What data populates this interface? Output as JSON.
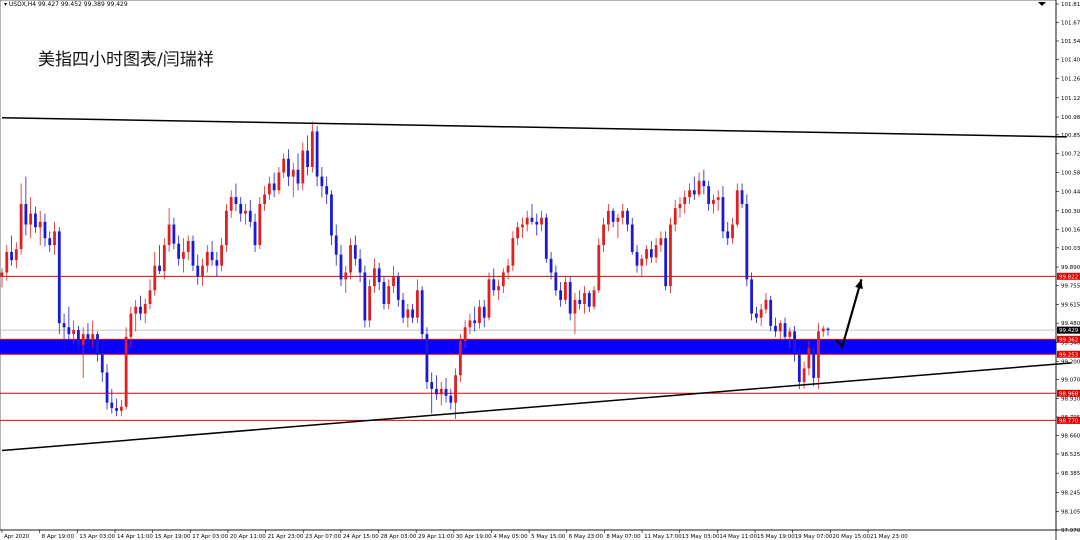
{
  "header": {
    "symbol_info": "▾ USDX,H4  99.427 99.452 99.389 99.429",
    "title": "美指四小时图表/闫瑞祥"
  },
  "colors": {
    "bull": "#e02020",
    "bear": "#1a1ad6",
    "zone": "#0a00ff",
    "level": "#e00000",
    "trend": "#000000"
  },
  "chart_data": {
    "type": "candlestick",
    "title": "美指四小时图表/闫瑞祥",
    "ylim": [
      97.97,
      101.81
    ],
    "y_ticks": [
      101.81,
      101.675,
      101.54,
      101.405,
      101.265,
      101.125,
      100.985,
      100.855,
      100.72,
      100.58,
      100.44,
      100.3,
      100.165,
      100.03,
      99.89,
      99.755,
      99.615,
      99.48,
      99.34,
      99.2,
      99.07,
      98.93,
      98.795,
      98.66,
      98.525,
      98.385,
      98.245,
      98.105,
      97.97
    ],
    "x_labels": [
      "Apr 2020",
      "8 Apr 19:00",
      "13 Apr 03:00",
      "14 Apr 11:00",
      "15 Apr 19:00",
      "17 Apr 03:00",
      "20 Apr 11:00",
      "21 Apr 23:00",
      "23 Apr 07:00",
      "24 Apr 15:00",
      "28 Apr 03:00",
      "29 Apr 11:00",
      "30 Apr 19:00",
      "4 May 05:00",
      "5 May 15:00",
      "6 May 23:00",
      "8 May 07:00",
      "11 May 17:00",
      "13 May 03:00",
      "14 May 11:00",
      "15 May 19:00",
      "19 May 07:00",
      "20 May 15:00",
      "21 May 23:00"
    ],
    "levels": [
      {
        "label": "99.822",
        "value": 99.822
      },
      {
        "label": "98.968",
        "value": 98.968
      },
      {
        "label": "98.770",
        "value": 98.77
      }
    ],
    "support_zone": {
      "top": 99.362,
      "bottom": 99.253,
      "top_label": "99.362",
      "bottom_label": "99.253"
    },
    "current_price": {
      "label": "99.429",
      "value": 99.429
    },
    "trendlines": [
      {
        "name": "upper",
        "from": [
          0,
          100.98
        ],
        "to": [
          223,
          100.84
        ]
      },
      {
        "name": "lower",
        "from": [
          0,
          98.55
        ],
        "to": [
          224,
          99.19
        ]
      }
    ],
    "forecast_arrow": {
      "from": [
        176,
        99.31
      ],
      "to": [
        180,
        99.8
      ]
    },
    "candles": [
      {
        "o": 99.82,
        "h": 99.88,
        "l": 99.74,
        "c": 99.85
      },
      {
        "o": 99.85,
        "h": 100.05,
        "l": 99.79,
        "c": 100.0
      },
      {
        "o": 100.0,
        "h": 100.12,
        "l": 99.9,
        "c": 99.94
      },
      {
        "o": 99.94,
        "h": 100.07,
        "l": 99.88,
        "c": 100.02
      },
      {
        "o": 100.02,
        "h": 100.5,
        "l": 99.98,
        "c": 100.35
      },
      {
        "o": 100.35,
        "h": 100.55,
        "l": 100.12,
        "c": 100.2
      },
      {
        "o": 100.2,
        "h": 100.4,
        "l": 100.1,
        "c": 100.28
      },
      {
        "o": 100.28,
        "h": 100.33,
        "l": 100.14,
        "c": 100.18
      },
      {
        "o": 100.18,
        "h": 100.3,
        "l": 100.05,
        "c": 100.22
      },
      {
        "o": 100.22,
        "h": 100.28,
        "l": 100.04,
        "c": 100.1
      },
      {
        "o": 100.1,
        "h": 100.15,
        "l": 100.0,
        "c": 100.05
      },
      {
        "o": 100.05,
        "h": 100.22,
        "l": 99.98,
        "c": 100.15
      },
      {
        "o": 100.15,
        "h": 100.18,
        "l": 99.4,
        "c": 99.48
      },
      {
        "o": 99.48,
        "h": 99.55,
        "l": 99.3,
        "c": 99.45
      },
      {
        "o": 99.45,
        "h": 99.6,
        "l": 99.36,
        "c": 99.4
      },
      {
        "o": 99.4,
        "h": 99.5,
        "l": 99.33,
        "c": 99.43
      },
      {
        "o": 99.43,
        "h": 99.46,
        "l": 99.28,
        "c": 99.32
      },
      {
        "o": 99.32,
        "h": 99.45,
        "l": 99.08,
        "c": 99.4
      },
      {
        "o": 99.4,
        "h": 99.48,
        "l": 99.28,
        "c": 99.36
      },
      {
        "o": 99.36,
        "h": 99.5,
        "l": 99.3,
        "c": 99.4
      },
      {
        "o": 99.4,
        "h": 99.42,
        "l": 99.2,
        "c": 99.25
      },
      {
        "o": 99.25,
        "h": 99.32,
        "l": 99.05,
        "c": 99.12
      },
      {
        "o": 99.12,
        "h": 99.18,
        "l": 98.85,
        "c": 98.9
      },
      {
        "o": 98.9,
        "h": 99.0,
        "l": 98.82,
        "c": 98.86
      },
      {
        "o": 98.86,
        "h": 98.93,
        "l": 98.8,
        "c": 98.84
      },
      {
        "o": 98.84,
        "h": 98.92,
        "l": 98.8,
        "c": 98.87
      },
      {
        "o": 98.87,
        "h": 99.45,
        "l": 98.85,
        "c": 99.38
      },
      {
        "o": 99.38,
        "h": 99.6,
        "l": 99.3,
        "c": 99.55
      },
      {
        "o": 99.55,
        "h": 99.65,
        "l": 99.42,
        "c": 99.6
      },
      {
        "o": 99.6,
        "h": 99.68,
        "l": 99.5,
        "c": 99.55
      },
      {
        "o": 99.55,
        "h": 99.66,
        "l": 99.48,
        "c": 99.62
      },
      {
        "o": 99.62,
        "h": 99.8,
        "l": 99.58,
        "c": 99.72
      },
      {
        "o": 99.72,
        "h": 100.0,
        "l": 99.68,
        "c": 99.9
      },
      {
        "o": 99.9,
        "h": 100.05,
        "l": 99.84,
        "c": 99.86
      },
      {
        "o": 99.86,
        "h": 100.1,
        "l": 99.8,
        "c": 100.05
      },
      {
        "o": 100.05,
        "h": 100.32,
        "l": 100.0,
        "c": 100.2
      },
      {
        "o": 100.2,
        "h": 100.25,
        "l": 100.02,
        "c": 100.06
      },
      {
        "o": 100.06,
        "h": 100.12,
        "l": 99.9,
        "c": 99.95
      },
      {
        "o": 99.95,
        "h": 100.1,
        "l": 99.85,
        "c": 100.0
      },
      {
        "o": 100.0,
        "h": 100.12,
        "l": 99.94,
        "c": 100.08
      },
      {
        "o": 100.08,
        "h": 100.12,
        "l": 99.86,
        "c": 99.9
      },
      {
        "o": 99.9,
        "h": 99.98,
        "l": 99.76,
        "c": 99.82
      },
      {
        "o": 99.82,
        "h": 99.95,
        "l": 99.75,
        "c": 99.9
      },
      {
        "o": 99.9,
        "h": 100.05,
        "l": 99.85,
        "c": 100.0
      },
      {
        "o": 100.0,
        "h": 100.08,
        "l": 99.9,
        "c": 99.94
      },
      {
        "o": 99.94,
        "h": 100.0,
        "l": 99.82,
        "c": 99.9
      },
      {
        "o": 99.9,
        "h": 100.1,
        "l": 99.86,
        "c": 100.05
      },
      {
        "o": 100.05,
        "h": 100.35,
        "l": 100.0,
        "c": 100.3
      },
      {
        "o": 100.3,
        "h": 100.45,
        "l": 100.25,
        "c": 100.4
      },
      {
        "o": 100.4,
        "h": 100.5,
        "l": 100.3,
        "c": 100.35
      },
      {
        "o": 100.35,
        "h": 100.4,
        "l": 100.22,
        "c": 100.28
      },
      {
        "o": 100.28,
        "h": 100.35,
        "l": 100.2,
        "c": 100.3
      },
      {
        "o": 100.3,
        "h": 100.38,
        "l": 100.18,
        "c": 100.22
      },
      {
        "o": 100.22,
        "h": 100.28,
        "l": 100.0,
        "c": 100.05
      },
      {
        "o": 100.05,
        "h": 100.4,
        "l": 100.02,
        "c": 100.35
      },
      {
        "o": 100.35,
        "h": 100.48,
        "l": 100.3,
        "c": 100.42
      },
      {
        "o": 100.42,
        "h": 100.55,
        "l": 100.38,
        "c": 100.5
      },
      {
        "o": 100.5,
        "h": 100.58,
        "l": 100.4,
        "c": 100.45
      },
      {
        "o": 100.45,
        "h": 100.62,
        "l": 100.42,
        "c": 100.58
      },
      {
        "o": 100.58,
        "h": 100.72,
        "l": 100.54,
        "c": 100.68
      },
      {
        "o": 100.68,
        "h": 100.75,
        "l": 100.48,
        "c": 100.55
      },
      {
        "o": 100.55,
        "h": 100.65,
        "l": 100.4,
        "c": 100.6
      },
      {
        "o": 100.6,
        "h": 100.72,
        "l": 100.45,
        "c": 100.5
      },
      {
        "o": 100.5,
        "h": 100.8,
        "l": 100.45,
        "c": 100.74
      },
      {
        "o": 100.74,
        "h": 100.85,
        "l": 100.56,
        "c": 100.62
      },
      {
        "o": 100.62,
        "h": 100.95,
        "l": 100.58,
        "c": 100.88
      },
      {
        "o": 100.88,
        "h": 100.92,
        "l": 100.48,
        "c": 100.55
      },
      {
        "o": 100.55,
        "h": 100.62,
        "l": 100.4,
        "c": 100.48
      },
      {
        "o": 100.48,
        "h": 100.55,
        "l": 100.35,
        "c": 100.42
      },
      {
        "o": 100.42,
        "h": 100.45,
        "l": 100.05,
        "c": 100.12
      },
      {
        "o": 100.12,
        "h": 100.2,
        "l": 99.9,
        "c": 99.98
      },
      {
        "o": 99.98,
        "h": 100.05,
        "l": 99.75,
        "c": 99.8
      },
      {
        "o": 99.8,
        "h": 99.9,
        "l": 99.7,
        "c": 99.85
      },
      {
        "o": 99.85,
        "h": 100.1,
        "l": 99.8,
        "c": 100.05
      },
      {
        "o": 100.05,
        "h": 100.12,
        "l": 99.9,
        "c": 99.95
      },
      {
        "o": 99.95,
        "h": 100.02,
        "l": 99.78,
        "c": 99.85
      },
      {
        "o": 99.85,
        "h": 99.9,
        "l": 99.45,
        "c": 99.5
      },
      {
        "o": 99.5,
        "h": 99.8,
        "l": 99.45,
        "c": 99.75
      },
      {
        "o": 99.75,
        "h": 99.95,
        "l": 99.7,
        "c": 99.88
      },
      {
        "o": 99.88,
        "h": 99.92,
        "l": 99.72,
        "c": 99.78
      },
      {
        "o": 99.78,
        "h": 99.82,
        "l": 99.58,
        "c": 99.62
      },
      {
        "o": 99.62,
        "h": 99.8,
        "l": 99.58,
        "c": 99.75
      },
      {
        "o": 99.75,
        "h": 99.9,
        "l": 99.7,
        "c": 99.82
      },
      {
        "o": 99.82,
        "h": 99.85,
        "l": 99.6,
        "c": 99.65
      },
      {
        "o": 99.65,
        "h": 99.7,
        "l": 99.48,
        "c": 99.52
      },
      {
        "o": 99.52,
        "h": 99.62,
        "l": 99.45,
        "c": 99.58
      },
      {
        "o": 99.58,
        "h": 99.62,
        "l": 99.48,
        "c": 99.52
      },
      {
        "o": 99.52,
        "h": 99.8,
        "l": 99.48,
        "c": 99.72
      },
      {
        "o": 99.72,
        "h": 99.75,
        "l": 99.35,
        "c": 99.4
      },
      {
        "o": 99.4,
        "h": 99.45,
        "l": 99.0,
        "c": 99.05
      },
      {
        "o": 99.05,
        "h": 99.12,
        "l": 98.82,
        "c": 99.0
      },
      {
        "o": 99.0,
        "h": 99.1,
        "l": 98.92,
        "c": 98.96
      },
      {
        "o": 98.96,
        "h": 99.05,
        "l": 98.88,
        "c": 99.0
      },
      {
        "o": 99.0,
        "h": 99.08,
        "l": 98.9,
        "c": 98.95
      },
      {
        "o": 98.95,
        "h": 99.0,
        "l": 98.85,
        "c": 98.9
      },
      {
        "o": 98.9,
        "h": 99.15,
        "l": 98.78,
        "c": 99.1
      },
      {
        "o": 99.1,
        "h": 99.4,
        "l": 99.05,
        "c": 99.35
      },
      {
        "o": 99.35,
        "h": 99.5,
        "l": 99.3,
        "c": 99.45
      },
      {
        "o": 99.45,
        "h": 99.55,
        "l": 99.4,
        "c": 99.5
      },
      {
        "o": 99.5,
        "h": 99.6,
        "l": 99.42,
        "c": 99.48
      },
      {
        "o": 99.48,
        "h": 99.65,
        "l": 99.44,
        "c": 99.6
      },
      {
        "o": 99.6,
        "h": 99.65,
        "l": 99.45,
        "c": 99.52
      },
      {
        "o": 99.52,
        "h": 99.85,
        "l": 99.5,
        "c": 99.8
      },
      {
        "o": 99.8,
        "h": 99.88,
        "l": 99.68,
        "c": 99.72
      },
      {
        "o": 99.72,
        "h": 99.8,
        "l": 99.65,
        "c": 99.75
      },
      {
        "o": 99.75,
        "h": 99.88,
        "l": 99.7,
        "c": 99.85
      },
      {
        "o": 99.85,
        "h": 99.95,
        "l": 99.8,
        "c": 99.9
      },
      {
        "o": 99.9,
        "h": 100.15,
        "l": 99.86,
        "c": 100.1
      },
      {
        "o": 100.1,
        "h": 100.22,
        "l": 100.05,
        "c": 100.18
      },
      {
        "o": 100.18,
        "h": 100.25,
        "l": 100.1,
        "c": 100.2
      },
      {
        "o": 100.2,
        "h": 100.3,
        "l": 100.15,
        "c": 100.25
      },
      {
        "o": 100.25,
        "h": 100.35,
        "l": 100.2,
        "c": 100.22
      },
      {
        "o": 100.22,
        "h": 100.28,
        "l": 100.12,
        "c": 100.2
      },
      {
        "o": 100.2,
        "h": 100.3,
        "l": 100.15,
        "c": 100.25
      },
      {
        "o": 100.25,
        "h": 100.28,
        "l": 99.92,
        "c": 99.95
      },
      {
        "o": 99.95,
        "h": 100.0,
        "l": 99.8,
        "c": 99.85
      },
      {
        "o": 99.85,
        "h": 99.9,
        "l": 99.68,
        "c": 99.72
      },
      {
        "o": 99.72,
        "h": 99.78,
        "l": 99.6,
        "c": 99.65
      },
      {
        "o": 99.65,
        "h": 99.82,
        "l": 99.62,
        "c": 99.78
      },
      {
        "o": 99.78,
        "h": 99.82,
        "l": 99.5,
        "c": 99.55
      },
      {
        "o": 99.55,
        "h": 99.7,
        "l": 99.4,
        "c": 99.65
      },
      {
        "o": 99.65,
        "h": 99.72,
        "l": 99.58,
        "c": 99.62
      },
      {
        "o": 99.62,
        "h": 99.75,
        "l": 99.55,
        "c": 99.7
      },
      {
        "o": 99.7,
        "h": 99.72,
        "l": 99.56,
        "c": 99.6
      },
      {
        "o": 99.6,
        "h": 99.75,
        "l": 99.58,
        "c": 99.72
      },
      {
        "o": 99.72,
        "h": 100.1,
        "l": 99.7,
        "c": 100.05
      },
      {
        "o": 100.05,
        "h": 100.25,
        "l": 100.0,
        "c": 100.2
      },
      {
        "o": 100.2,
        "h": 100.35,
        "l": 100.15,
        "c": 100.3
      },
      {
        "o": 100.3,
        "h": 100.32,
        "l": 100.18,
        "c": 100.22
      },
      {
        "o": 100.22,
        "h": 100.28,
        "l": 100.1,
        "c": 100.25
      },
      {
        "o": 100.25,
        "h": 100.35,
        "l": 100.2,
        "c": 100.3
      },
      {
        "o": 100.3,
        "h": 100.32,
        "l": 100.15,
        "c": 100.2
      },
      {
        "o": 100.2,
        "h": 100.25,
        "l": 99.98,
        "c": 100.0
      },
      {
        "o": 100.0,
        "h": 100.05,
        "l": 99.85,
        "c": 99.9
      },
      {
        "o": 99.9,
        "h": 99.98,
        "l": 99.82,
        "c": 99.95
      },
      {
        "o": 99.95,
        "h": 100.05,
        "l": 99.9,
        "c": 100.02
      },
      {
        "o": 100.02,
        "h": 100.08,
        "l": 99.92,
        "c": 99.96
      },
      {
        "o": 99.96,
        "h": 100.1,
        "l": 99.92,
        "c": 100.05
      },
      {
        "o": 100.05,
        "h": 100.15,
        "l": 100.0,
        "c": 100.1
      },
      {
        "o": 100.1,
        "h": 100.15,
        "l": 99.72,
        "c": 99.75
      },
      {
        "o": 99.75,
        "h": 100.25,
        "l": 99.7,
        "c": 100.2
      },
      {
        "o": 100.2,
        "h": 100.38,
        "l": 100.15,
        "c": 100.32
      },
      {
        "o": 100.32,
        "h": 100.4,
        "l": 100.25,
        "c": 100.35
      },
      {
        "o": 100.35,
        "h": 100.45,
        "l": 100.28,
        "c": 100.4
      },
      {
        "o": 100.4,
        "h": 100.5,
        "l": 100.35,
        "c": 100.45
      },
      {
        "o": 100.45,
        "h": 100.55,
        "l": 100.38,
        "c": 100.42
      },
      {
        "o": 100.42,
        "h": 100.58,
        "l": 100.4,
        "c": 100.52
      },
      {
        "o": 100.52,
        "h": 100.6,
        "l": 100.42,
        "c": 100.48
      },
      {
        "o": 100.48,
        "h": 100.52,
        "l": 100.3,
        "c": 100.35
      },
      {
        "o": 100.35,
        "h": 100.42,
        "l": 100.28,
        "c": 100.38
      },
      {
        "o": 100.38,
        "h": 100.45,
        "l": 100.3,
        "c": 100.4
      },
      {
        "o": 100.4,
        "h": 100.48,
        "l": 100.1,
        "c": 100.15
      },
      {
        "o": 100.15,
        "h": 100.22,
        "l": 100.05,
        "c": 100.1
      },
      {
        "o": 100.1,
        "h": 100.25,
        "l": 100.06,
        "c": 100.2
      },
      {
        "o": 100.2,
        "h": 100.5,
        "l": 100.18,
        "c": 100.45
      },
      {
        "o": 100.45,
        "h": 100.5,
        "l": 100.32,
        "c": 100.35
      },
      {
        "o": 100.35,
        "h": 100.42,
        "l": 99.75,
        "c": 99.8
      },
      {
        "o": 99.8,
        "h": 99.85,
        "l": 99.5,
        "c": 99.55
      },
      {
        "o": 99.55,
        "h": 99.6,
        "l": 99.48,
        "c": 99.52
      },
      {
        "o": 99.52,
        "h": 99.62,
        "l": 99.46,
        "c": 99.58
      },
      {
        "o": 99.58,
        "h": 99.7,
        "l": 99.55,
        "c": 99.65
      },
      {
        "o": 99.65,
        "h": 99.68,
        "l": 99.42,
        "c": 99.46
      },
      {
        "o": 99.46,
        "h": 99.52,
        "l": 99.38,
        "c": 99.42
      },
      {
        "o": 99.42,
        "h": 99.5,
        "l": 99.36,
        "c": 99.48
      },
      {
        "o": 99.48,
        "h": 99.52,
        "l": 99.35,
        "c": 99.38
      },
      {
        "o": 99.38,
        "h": 99.45,
        "l": 99.3,
        "c": 99.42
      },
      {
        "o": 99.42,
        "h": 99.46,
        "l": 99.2,
        "c": 99.25
      },
      {
        "o": 99.25,
        "h": 99.3,
        "l": 99.0,
        "c": 99.05
      },
      {
        "o": 99.05,
        "h": 99.2,
        "l": 99.0,
        "c": 99.15
      },
      {
        "o": 99.15,
        "h": 99.35,
        "l": 99.1,
        "c": 99.3
      },
      {
        "o": 99.3,
        "h": 99.32,
        "l": 99.02,
        "c": 99.08
      },
      {
        "o": 99.08,
        "h": 99.48,
        "l": 99.0,
        "c": 99.42
      },
      {
        "o": 99.42,
        "h": 99.46,
        "l": 99.38,
        "c": 99.44
      },
      {
        "o": 99.44,
        "h": 99.45,
        "l": 99.39,
        "c": 99.43
      }
    ]
  }
}
